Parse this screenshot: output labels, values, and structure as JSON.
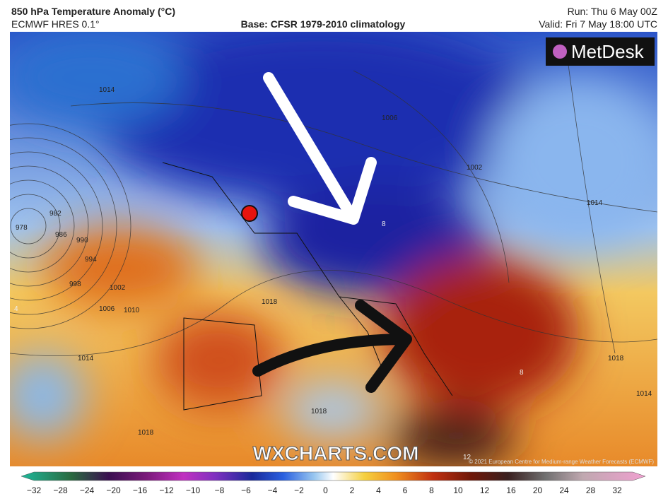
{
  "header": {
    "title": "850 hPa Temperature Anomaly (°C)",
    "model": "ECMWF HRES 0.1°",
    "base": "Base: CFSR 1979-2010 climatology",
    "run": "Run: Thu 6 May 00Z",
    "valid": "Valid: Fri 7 May 18:00 UTC"
  },
  "logo": "MetDesk",
  "watermark": "WXCHARTS.COM",
  "copyright": "© 2021 European Centre for Medium-range Weather Forecasts (ECMWF)",
  "contour_labels": [
    "1014",
    "982",
    "978",
    "986",
    "990",
    "994",
    "998",
    "1002",
    "1006",
    "1010",
    "1014",
    "1018",
    "1006",
    "1002",
    "1014",
    "1018",
    "1018",
    "1018",
    "1014",
    "8",
    "8",
    "4",
    "12"
  ],
  "colorbar": {
    "labels": [
      "−32",
      "−28",
      "−24",
      "−20",
      "−16",
      "−12",
      "−10",
      "−8",
      "−6",
      "−4",
      "−2",
      "0",
      "2",
      "4",
      "6",
      "8",
      "10",
      "12",
      "16",
      "20",
      "24",
      "28",
      "32"
    ]
  }
}
